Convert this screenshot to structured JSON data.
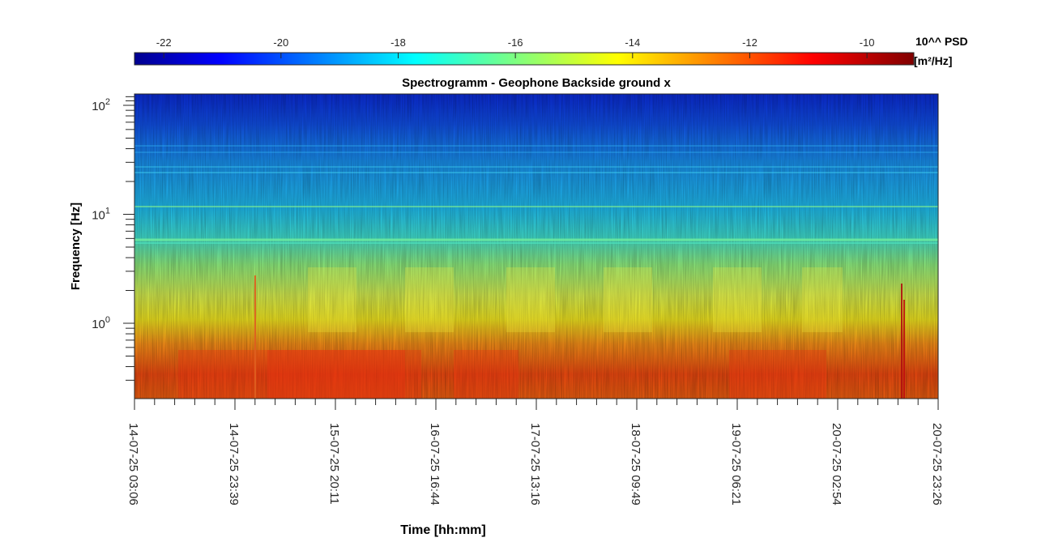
{
  "chart_data": {
    "type": "heatmap",
    "title": "Spectrogramm - Geophone Backside ground x",
    "xlabel": "Time [hh:mm]",
    "ylabel": "Frequency [Hz]",
    "x_ticks": [
      "14-07-25 03:06",
      "14-07-25 23:39",
      "15-07-25 20:11",
      "16-07-25 16:44",
      "17-07-25 13:16",
      "18-07-25 09:49",
      "19-07-25 06:21",
      "20-07-25 02:54",
      "20-07-25 23:26"
    ],
    "y_scale": "log",
    "y_ticks": [
      {
        "base": "10",
        "exp": "0",
        "value": 1
      },
      {
        "base": "10",
        "exp": "1",
        "value": 10
      },
      {
        "base": "10",
        "exp": "2",
        "value": 100
      }
    ],
    "colorbar": {
      "label_line1": "10^^ PSD",
      "label_line2": "[m²/Hz]",
      "ticks": [
        "-22",
        "-20",
        "-18",
        "-16",
        "-14",
        "-12",
        "-10"
      ],
      "range": [
        -22.5,
        -9.2
      ],
      "colormap": "jet"
    },
    "colors": {
      "high_freq_band": "#1040e0",
      "mid_freq_band": "#20c0f0",
      "low_freq_band": "#e8f040",
      "bottom_band": "#f04010"
    }
  }
}
